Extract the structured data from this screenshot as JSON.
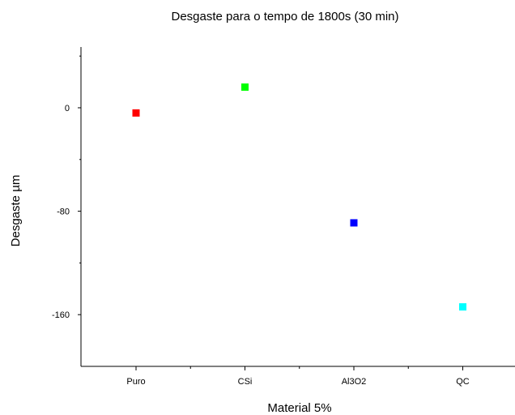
{
  "chart_data": {
    "type": "scatter",
    "title": "Desgaste para o tempo de 1800s (30 min)",
    "xlabel": "Material 5%",
    "ylabel": "Desgaste µm",
    "categories": [
      "Puro",
      "CSi",
      "Al3O2",
      "QC"
    ],
    "values": [
      -4,
      16,
      -89,
      -154
    ],
    "point_colors": [
      "#ff0000",
      "#00ff00",
      "#0000ff",
      "#00ffff"
    ],
    "ylim": [
      -200,
      47
    ],
    "yticks": [
      0,
      -80,
      -160
    ],
    "ytick_labels": [
      "0",
      "-80",
      "-160"
    ],
    "grid": false,
    "legend": "none",
    "marker": "square"
  }
}
